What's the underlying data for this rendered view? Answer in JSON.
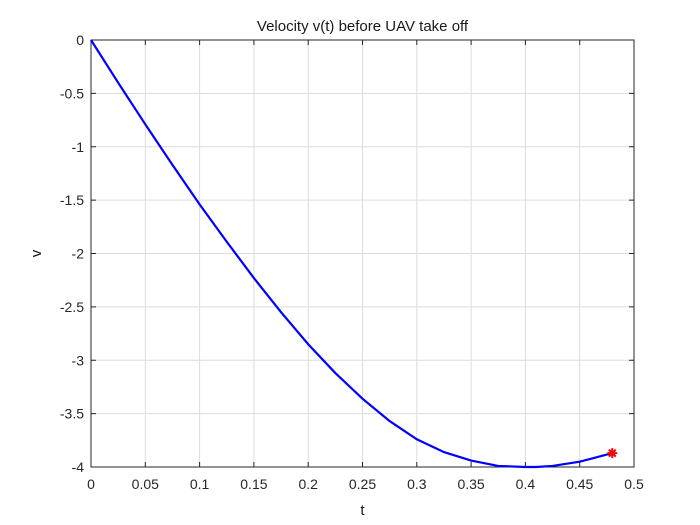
{
  "chart_data": {
    "type": "line",
    "title": "Velocity v(t) before UAV take off",
    "xlabel": "t",
    "ylabel": "v",
    "xlim": [
      0,
      0.5
    ],
    "ylim": [
      -4,
      0
    ],
    "xticks": [
      "0",
      "0.05",
      "0.1",
      "0.15",
      "0.2",
      "0.25",
      "0.3",
      "0.35",
      "0.4",
      "0.45",
      "0.5"
    ],
    "yticks": [
      "0",
      "-0.5",
      "-1",
      "-1.5",
      "-2",
      "-2.5",
      "-3",
      "-3.5",
      "-4"
    ],
    "grid": true,
    "series": [
      {
        "color": "#0000ff",
        "x": [
          0,
          0.025,
          0.05,
          0.075,
          0.1,
          0.125,
          0.15,
          0.175,
          0.2,
          0.225,
          0.25,
          0.275,
          0.3,
          0.325,
          0.35,
          0.375,
          0.4,
          0.41,
          0.425,
          0.45,
          0.465,
          0.48
        ],
        "y": [
          0,
          -0.4,
          -0.79,
          -1.17,
          -1.54,
          -1.89,
          -2.23,
          -2.55,
          -2.85,
          -3.12,
          -3.36,
          -3.57,
          -3.74,
          -3.86,
          -3.94,
          -3.99,
          -4.0,
          -4.0,
          -3.99,
          -3.95,
          -3.91,
          -3.87
        ]
      }
    ],
    "markers": [
      {
        "x": 0.48,
        "y": -3.87,
        "color": "#ff0000",
        "symbol": "asterisk"
      }
    ]
  }
}
